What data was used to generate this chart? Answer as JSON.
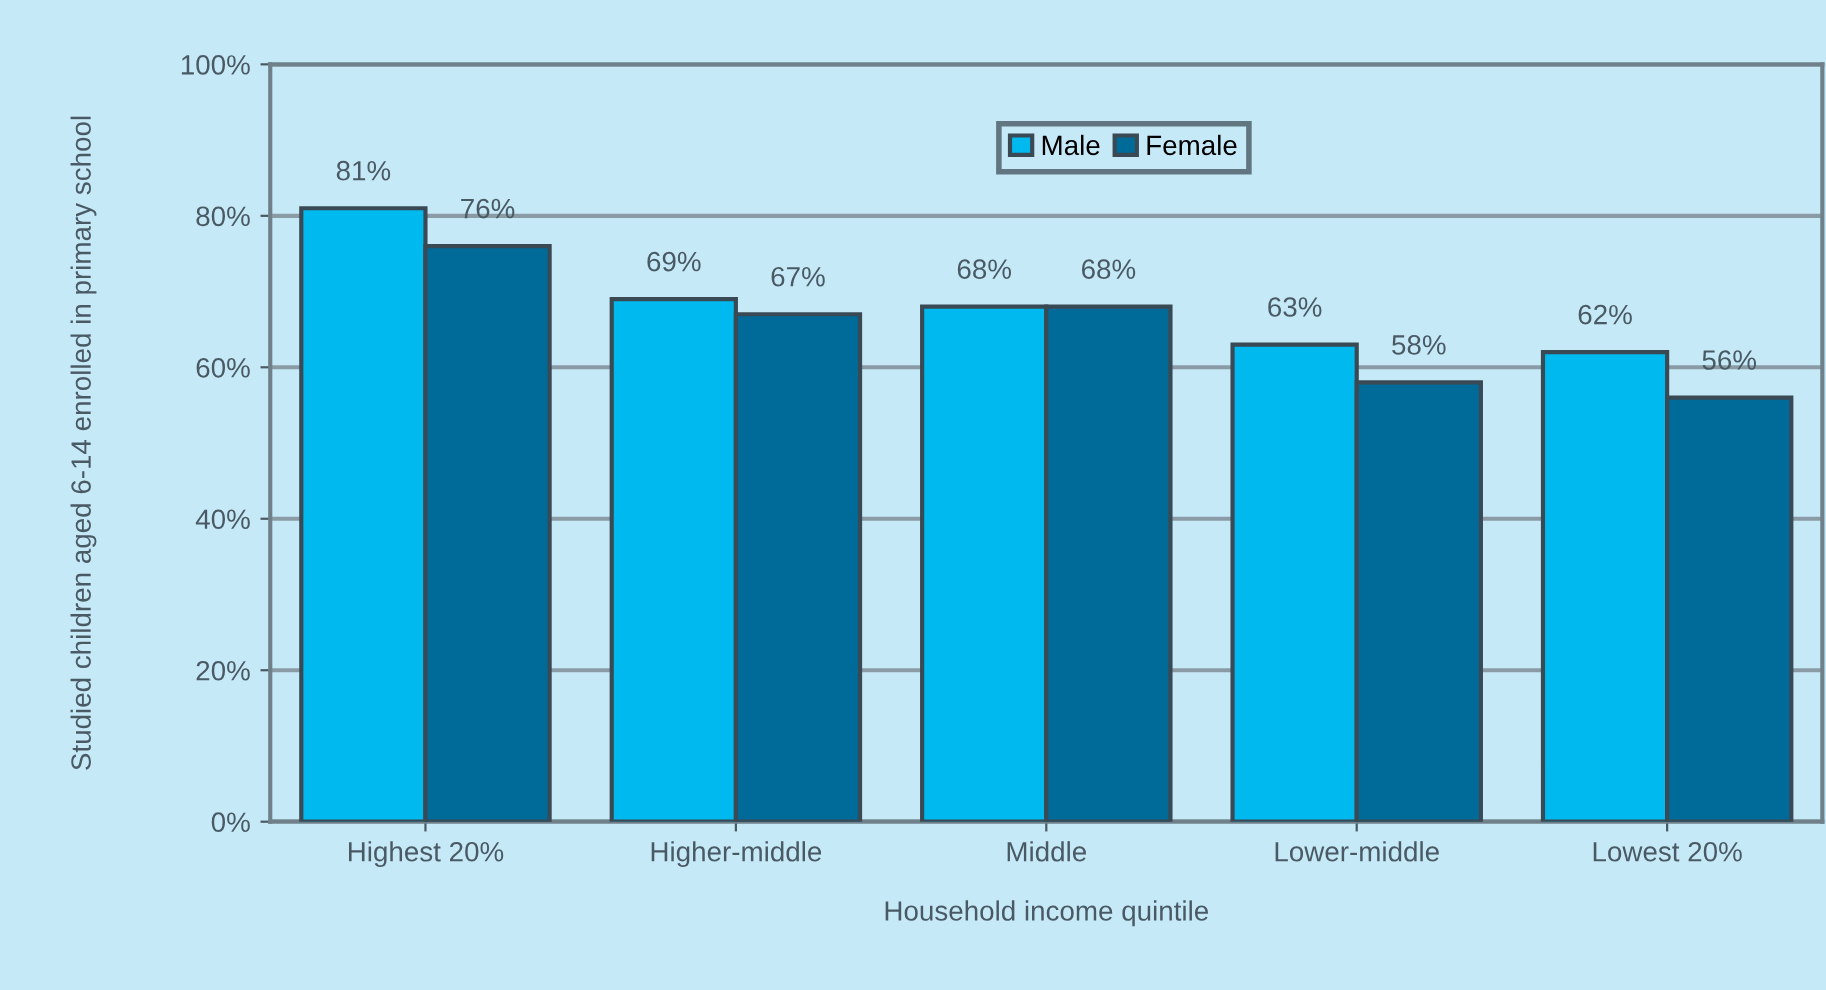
{
  "chart_data": {
    "type": "bar",
    "xlabel": "Household income quintile",
    "ylabel": "Studied children aged 6-14 enrolled in primary school",
    "categories": [
      "Highest 20%",
      "Higher-middle",
      "Middle",
      "Lower-middle",
      "Lowest 20%"
    ],
    "series": [
      {
        "name": "Male",
        "color": "#00b9ef",
        "values": [
          81,
          69,
          68,
          63,
          62
        ],
        "value_labels": [
          "81%",
          "69%",
          "68%",
          "63%",
          "62%"
        ]
      },
      {
        "name": "Female",
        "color": "#006b99",
        "values": [
          76,
          67,
          68,
          58,
          56
        ],
        "value_labels": [
          "76%",
          "67%",
          "68%",
          "58%",
          "56%"
        ]
      }
    ],
    "ylim": [
      0,
      100
    ],
    "yticks": [
      {
        "value": 0,
        "label": "0%"
      },
      {
        "value": 20,
        "label": "20%"
      },
      {
        "value": 40,
        "label": "40%"
      },
      {
        "value": 60,
        "label": "60%"
      },
      {
        "value": 80,
        "label": "80%"
      },
      {
        "value": 100,
        "label": "100%"
      }
    ],
    "grid": "y",
    "legend": "top"
  }
}
